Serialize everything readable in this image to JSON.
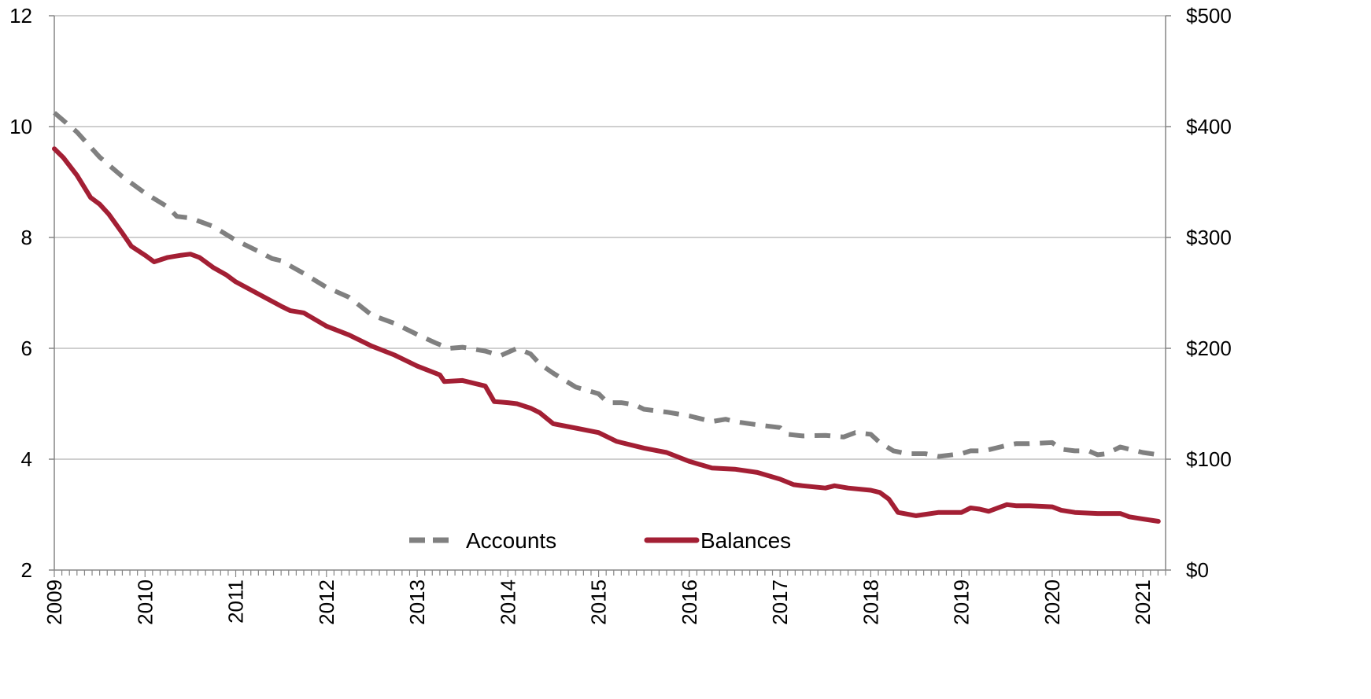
{
  "chart_data": {
    "type": "line",
    "title": "",
    "xlabel": "",
    "ylabel_left": "",
    "ylabel_right": "",
    "grid": true,
    "legend_position": "bottom-center",
    "x_ticks": [
      "2009",
      "2010",
      "2011",
      "2012",
      "2013",
      "2014",
      "2015",
      "2016",
      "2017",
      "2018",
      "2019",
      "2020",
      "2021"
    ],
    "ylim_left": [
      2,
      12
    ],
    "yticks_left": [
      "2",
      "4",
      "6",
      "8",
      "10",
      "12"
    ],
    "ylim_right": [
      0,
      500
    ],
    "yticks_right": [
      "$0",
      "$100",
      "$200",
      "$300",
      "$400",
      "$500"
    ],
    "colors": {
      "accounts": "#808080",
      "balances": "#A31F34",
      "grid": "#BFBFBF",
      "axis": "#868686"
    },
    "series": [
      {
        "name": "Accounts",
        "axis": "left",
        "style": "dashed",
        "points": [
          [
            2009.0,
            10.25
          ],
          [
            2009.25,
            9.9
          ],
          [
            2009.5,
            9.45
          ],
          [
            2009.75,
            9.1
          ],
          [
            2010.0,
            8.8
          ],
          [
            2010.25,
            8.55
          ],
          [
            2010.35,
            8.38
          ],
          [
            2010.5,
            8.35
          ],
          [
            2010.75,
            8.2
          ],
          [
            2011.0,
            7.95
          ],
          [
            2011.25,
            7.75
          ],
          [
            2011.4,
            7.62
          ],
          [
            2011.5,
            7.58
          ],
          [
            2011.75,
            7.35
          ],
          [
            2012.0,
            7.1
          ],
          [
            2012.25,
            6.92
          ],
          [
            2012.5,
            6.6
          ],
          [
            2012.75,
            6.45
          ],
          [
            2013.0,
            6.25
          ],
          [
            2013.2,
            6.1
          ],
          [
            2013.35,
            6.0
          ],
          [
            2013.5,
            6.02
          ],
          [
            2013.75,
            5.95
          ],
          [
            2013.92,
            5.87
          ],
          [
            2014.1,
            6.0
          ],
          [
            2014.25,
            5.9
          ],
          [
            2014.35,
            5.72
          ],
          [
            2014.5,
            5.55
          ],
          [
            2014.75,
            5.3
          ],
          [
            2015.0,
            5.18
          ],
          [
            2015.1,
            5.02
          ],
          [
            2015.25,
            5.02
          ],
          [
            2015.4,
            4.98
          ],
          [
            2015.5,
            4.9
          ],
          [
            2015.75,
            4.85
          ],
          [
            2016.0,
            4.78
          ],
          [
            2016.25,
            4.68
          ],
          [
            2016.4,
            4.72
          ],
          [
            2016.5,
            4.68
          ],
          [
            2016.75,
            4.62
          ],
          [
            2017.0,
            4.57
          ],
          [
            2017.08,
            4.45
          ],
          [
            2017.25,
            4.42
          ],
          [
            2017.5,
            4.43
          ],
          [
            2017.7,
            4.4
          ],
          [
            2017.83,
            4.48
          ],
          [
            2018.0,
            4.45
          ],
          [
            2018.1,
            4.3
          ],
          [
            2018.25,
            4.15
          ],
          [
            2018.4,
            4.1
          ],
          [
            2018.6,
            4.1
          ],
          [
            2018.75,
            4.05
          ],
          [
            2019.0,
            4.1
          ],
          [
            2019.1,
            4.15
          ],
          [
            2019.25,
            4.15
          ],
          [
            2019.5,
            4.25
          ],
          [
            2019.6,
            4.28
          ],
          [
            2019.75,
            4.28
          ],
          [
            2020.0,
            4.3
          ],
          [
            2020.1,
            4.18
          ],
          [
            2020.25,
            4.15
          ],
          [
            2020.4,
            4.15
          ],
          [
            2020.5,
            4.08
          ],
          [
            2020.6,
            4.1
          ],
          [
            2020.75,
            4.22
          ],
          [
            2021.0,
            4.12
          ],
          [
            2021.17,
            4.08
          ]
        ]
      },
      {
        "name": "Balances",
        "axis": "right",
        "style": "solid",
        "points": [
          [
            2009.0,
            380
          ],
          [
            2009.1,
            372
          ],
          [
            2009.25,
            356
          ],
          [
            2009.4,
            336
          ],
          [
            2009.5,
            330
          ],
          [
            2009.6,
            321
          ],
          [
            2009.75,
            304
          ],
          [
            2009.85,
            292
          ],
          [
            2010.0,
            284
          ],
          [
            2010.1,
            278
          ],
          [
            2010.25,
            282
          ],
          [
            2010.4,
            284
          ],
          [
            2010.5,
            285
          ],
          [
            2010.6,
            282
          ],
          [
            2010.75,
            273
          ],
          [
            2010.9,
            266
          ],
          [
            2011.0,
            260
          ],
          [
            2011.25,
            249
          ],
          [
            2011.5,
            238
          ],
          [
            2011.6,
            234
          ],
          [
            2011.75,
            232
          ],
          [
            2012.0,
            220
          ],
          [
            2012.25,
            212
          ],
          [
            2012.5,
            202
          ],
          [
            2012.75,
            194
          ],
          [
            2013.0,
            184
          ],
          [
            2013.25,
            176
          ],
          [
            2013.3,
            170
          ],
          [
            2013.5,
            171
          ],
          [
            2013.75,
            166
          ],
          [
            2013.85,
            152
          ],
          [
            2014.0,
            151
          ],
          [
            2014.1,
            150
          ],
          [
            2014.25,
            146
          ],
          [
            2014.35,
            142
          ],
          [
            2014.5,
            132
          ],
          [
            2014.75,
            128
          ],
          [
            2015.0,
            124
          ],
          [
            2015.1,
            120
          ],
          [
            2015.2,
            116
          ],
          [
            2015.25,
            115
          ],
          [
            2015.5,
            110
          ],
          [
            2015.75,
            106
          ],
          [
            2016.0,
            98
          ],
          [
            2016.25,
            92
          ],
          [
            2016.5,
            91
          ],
          [
            2016.75,
            88
          ],
          [
            2017.0,
            82
          ],
          [
            2017.15,
            77
          ],
          [
            2017.25,
            76
          ],
          [
            2017.5,
            74
          ],
          [
            2017.6,
            76
          ],
          [
            2017.75,
            74
          ],
          [
            2018.0,
            72
          ],
          [
            2018.1,
            70
          ],
          [
            2018.2,
            64
          ],
          [
            2018.3,
            52
          ],
          [
            2018.5,
            49
          ],
          [
            2018.75,
            52
          ],
          [
            2019.0,
            52
          ],
          [
            2019.1,
            56
          ],
          [
            2019.2,
            55
          ],
          [
            2019.3,
            53
          ],
          [
            2019.5,
            59
          ],
          [
            2019.6,
            58
          ],
          [
            2019.75,
            58
          ],
          [
            2020.0,
            57
          ],
          [
            2020.1,
            54
          ],
          [
            2020.25,
            52
          ],
          [
            2020.5,
            51
          ],
          [
            2020.75,
            51
          ],
          [
            2020.85,
            48
          ],
          [
            2021.0,
            46
          ],
          [
            2021.17,
            44
          ]
        ]
      }
    ]
  }
}
